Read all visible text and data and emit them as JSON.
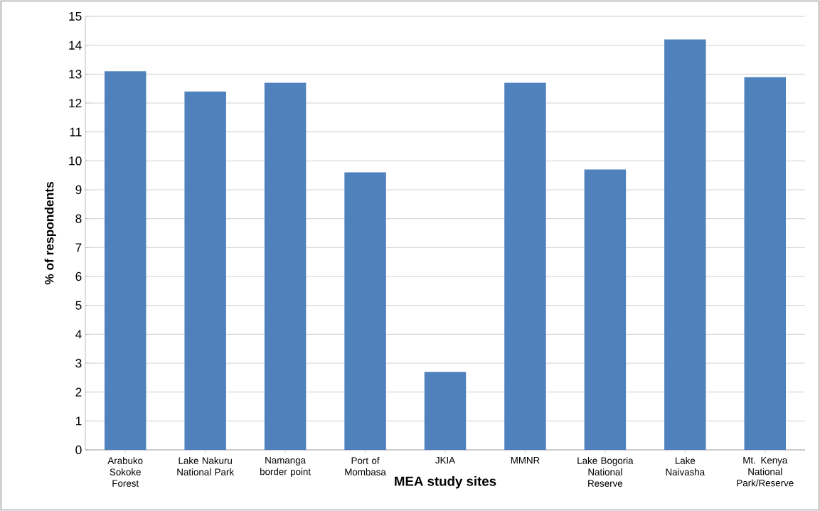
{
  "chart_data": {
    "type": "bar",
    "xlabel": "MEA study sites",
    "ylabel": "% of respondents",
    "categories": [
      "Arabuko Sokoke Forest",
      "Lake Nakuru National Park",
      "Namanga border point",
      "Port of Mombasa",
      "JKIA",
      "MMNR",
      "Lake Bogoria National Reserve",
      "Lake Naivasha",
      "Mt. Kenya National Park/Reserve"
    ],
    "values": [
      13.1,
      12.4,
      12.7,
      9.6,
      2.7,
      12.7,
      9.7,
      14.2,
      12.9
    ],
    "color": "#4f81bd",
    "ylim": [
      0,
      15
    ],
    "yticks": [
      0,
      1,
      2,
      3,
      4,
      5,
      6,
      7,
      8,
      9,
      10,
      11,
      12,
      13,
      14,
      15
    ],
    "grid": "y"
  }
}
